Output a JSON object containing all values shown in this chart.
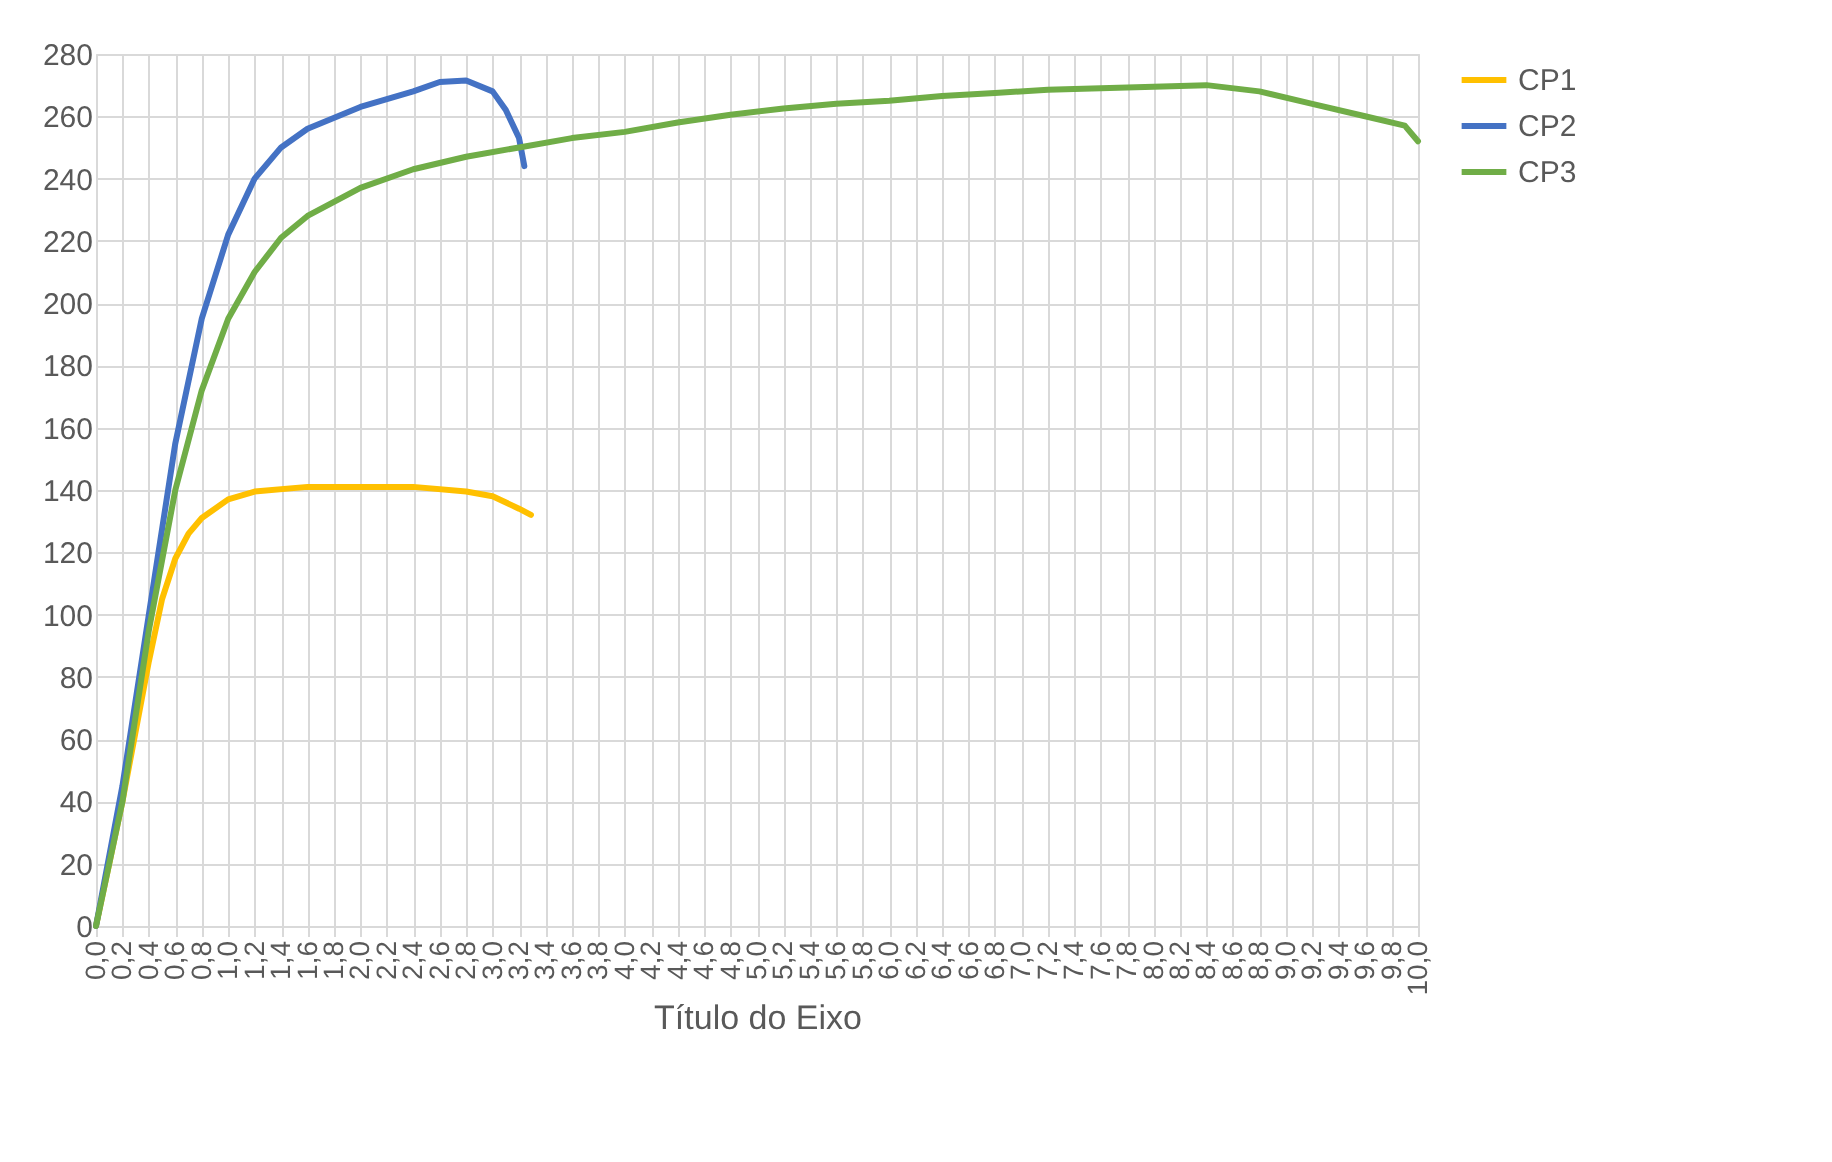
{
  "chart_data": {
    "type": "line",
    "xlabel": "Título do Eixo",
    "xlim": [
      0,
      10
    ],
    "xticks": [
      {
        "value": 0,
        "label": "0,0"
      },
      {
        "value": 0.2,
        "label": "0,2"
      },
      {
        "value": 0.4,
        "label": "0,4"
      },
      {
        "value": 0.6,
        "label": "0,6"
      },
      {
        "value": 0.8,
        "label": "0,8"
      },
      {
        "value": 1,
        "label": "1,0"
      },
      {
        "value": 1.2,
        "label": "1,2"
      },
      {
        "value": 1.4,
        "label": "1,4"
      },
      {
        "value": 1.6,
        "label": "1,6"
      },
      {
        "value": 1.8,
        "label": "1,8"
      },
      {
        "value": 2,
        "label": "2,0"
      },
      {
        "value": 2.2,
        "label": "2,2"
      },
      {
        "value": 2.4,
        "label": "2,4"
      },
      {
        "value": 2.6,
        "label": "2,6"
      },
      {
        "value": 2.8,
        "label": "2,8"
      },
      {
        "value": 3,
        "label": "3,0"
      },
      {
        "value": 3.2,
        "label": "3,2"
      },
      {
        "value": 3.4,
        "label": "3,4"
      },
      {
        "value": 3.6,
        "label": "3,6"
      },
      {
        "value": 3.8,
        "label": "3,8"
      },
      {
        "value": 4,
        "label": "4,0"
      },
      {
        "value": 4.2,
        "label": "4,2"
      },
      {
        "value": 4.4,
        "label": "4,4"
      },
      {
        "value": 4.6,
        "label": "4,6"
      },
      {
        "value": 4.8,
        "label": "4,8"
      },
      {
        "value": 5,
        "label": "5,0"
      },
      {
        "value": 5.2,
        "label": "5,2"
      },
      {
        "value": 5.4,
        "label": "5,4"
      },
      {
        "value": 5.6,
        "label": "5,6"
      },
      {
        "value": 5.8,
        "label": "5,8"
      },
      {
        "value": 6,
        "label": "6,0"
      },
      {
        "value": 6.2,
        "label": "6,2"
      },
      {
        "value": 6.4,
        "label": "6,4"
      },
      {
        "value": 6.6,
        "label": "6,6"
      },
      {
        "value": 6.8,
        "label": "6,8"
      },
      {
        "value": 7,
        "label": "7,0"
      },
      {
        "value": 7.2,
        "label": "7,2"
      },
      {
        "value": 7.4,
        "label": "7,4"
      },
      {
        "value": 7.6,
        "label": "7,6"
      },
      {
        "value": 7.8,
        "label": "7,8"
      },
      {
        "value": 8,
        "label": "8,0"
      },
      {
        "value": 8.2,
        "label": "8,2"
      },
      {
        "value": 8.4,
        "label": "8,4"
      },
      {
        "value": 8.6,
        "label": "8,6"
      },
      {
        "value": 8.8,
        "label": "8,8"
      },
      {
        "value": 9,
        "label": "9,0"
      },
      {
        "value": 9.2,
        "label": "9,2"
      },
      {
        "value": 9.4,
        "label": "9,4"
      },
      {
        "value": 9.6,
        "label": "9,6"
      },
      {
        "value": 9.8,
        "label": "9,8"
      },
      {
        "value": 10,
        "label": "10,0"
      }
    ],
    "ylim": [
      0,
      280
    ],
    "yticks": [
      0,
      20,
      40,
      60,
      80,
      100,
      120,
      140,
      160,
      180,
      200,
      220,
      240,
      260,
      280
    ],
    "grid": true,
    "legend": "right",
    "line_style": "solid",
    "marker": "none",
    "series": [
      {
        "name": "CP1",
        "color": "#ffc000",
        "x": [
          0,
          0.2,
          0.4,
          0.5,
          0.6,
          0.7,
          0.8,
          1.0,
          1.2,
          1.6,
          2.0,
          2.4,
          2.8,
          3.0,
          3.2,
          3.29
        ],
        "values": [
          0,
          40,
          85,
          105,
          118,
          126,
          131,
          137,
          139.5,
          141,
          141,
          141,
          139.5,
          138,
          134,
          132
        ]
      },
      {
        "name": "CP2",
        "color": "#4472c4",
        "x": [
          0,
          0.2,
          0.4,
          0.6,
          0.8,
          1.0,
          1.2,
          1.4,
          1.6,
          2.0,
          2.4,
          2.6,
          2.8,
          3.0,
          3.1,
          3.2,
          3.24
        ],
        "values": [
          0,
          45,
          100,
          155,
          195,
          222,
          240,
          250,
          256,
          263,
          268,
          271,
          271.5,
          268,
          262,
          253,
          244
        ]
      },
      {
        "name": "CP3",
        "color": "#70ad47",
        "x": [
          0,
          0.2,
          0.4,
          0.6,
          0.8,
          1.0,
          1.2,
          1.4,
          1.6,
          2.0,
          2.4,
          2.8,
          3.2,
          3.6,
          4.0,
          4.4,
          4.8,
          5.2,
          5.6,
          6.0,
          6.4,
          6.8,
          7.2,
          7.6,
          8.0,
          8.4,
          8.8,
          9.2,
          9.6,
          9.9,
          10.0
        ],
        "values": [
          0,
          40,
          95,
          140,
          172,
          195,
          210,
          221,
          228,
          237,
          243,
          247,
          250,
          253,
          255,
          258,
          260.5,
          262.5,
          264,
          265,
          266.5,
          267.5,
          268.5,
          269,
          269.5,
          270,
          268,
          264,
          260,
          257,
          252
        ]
      }
    ]
  }
}
